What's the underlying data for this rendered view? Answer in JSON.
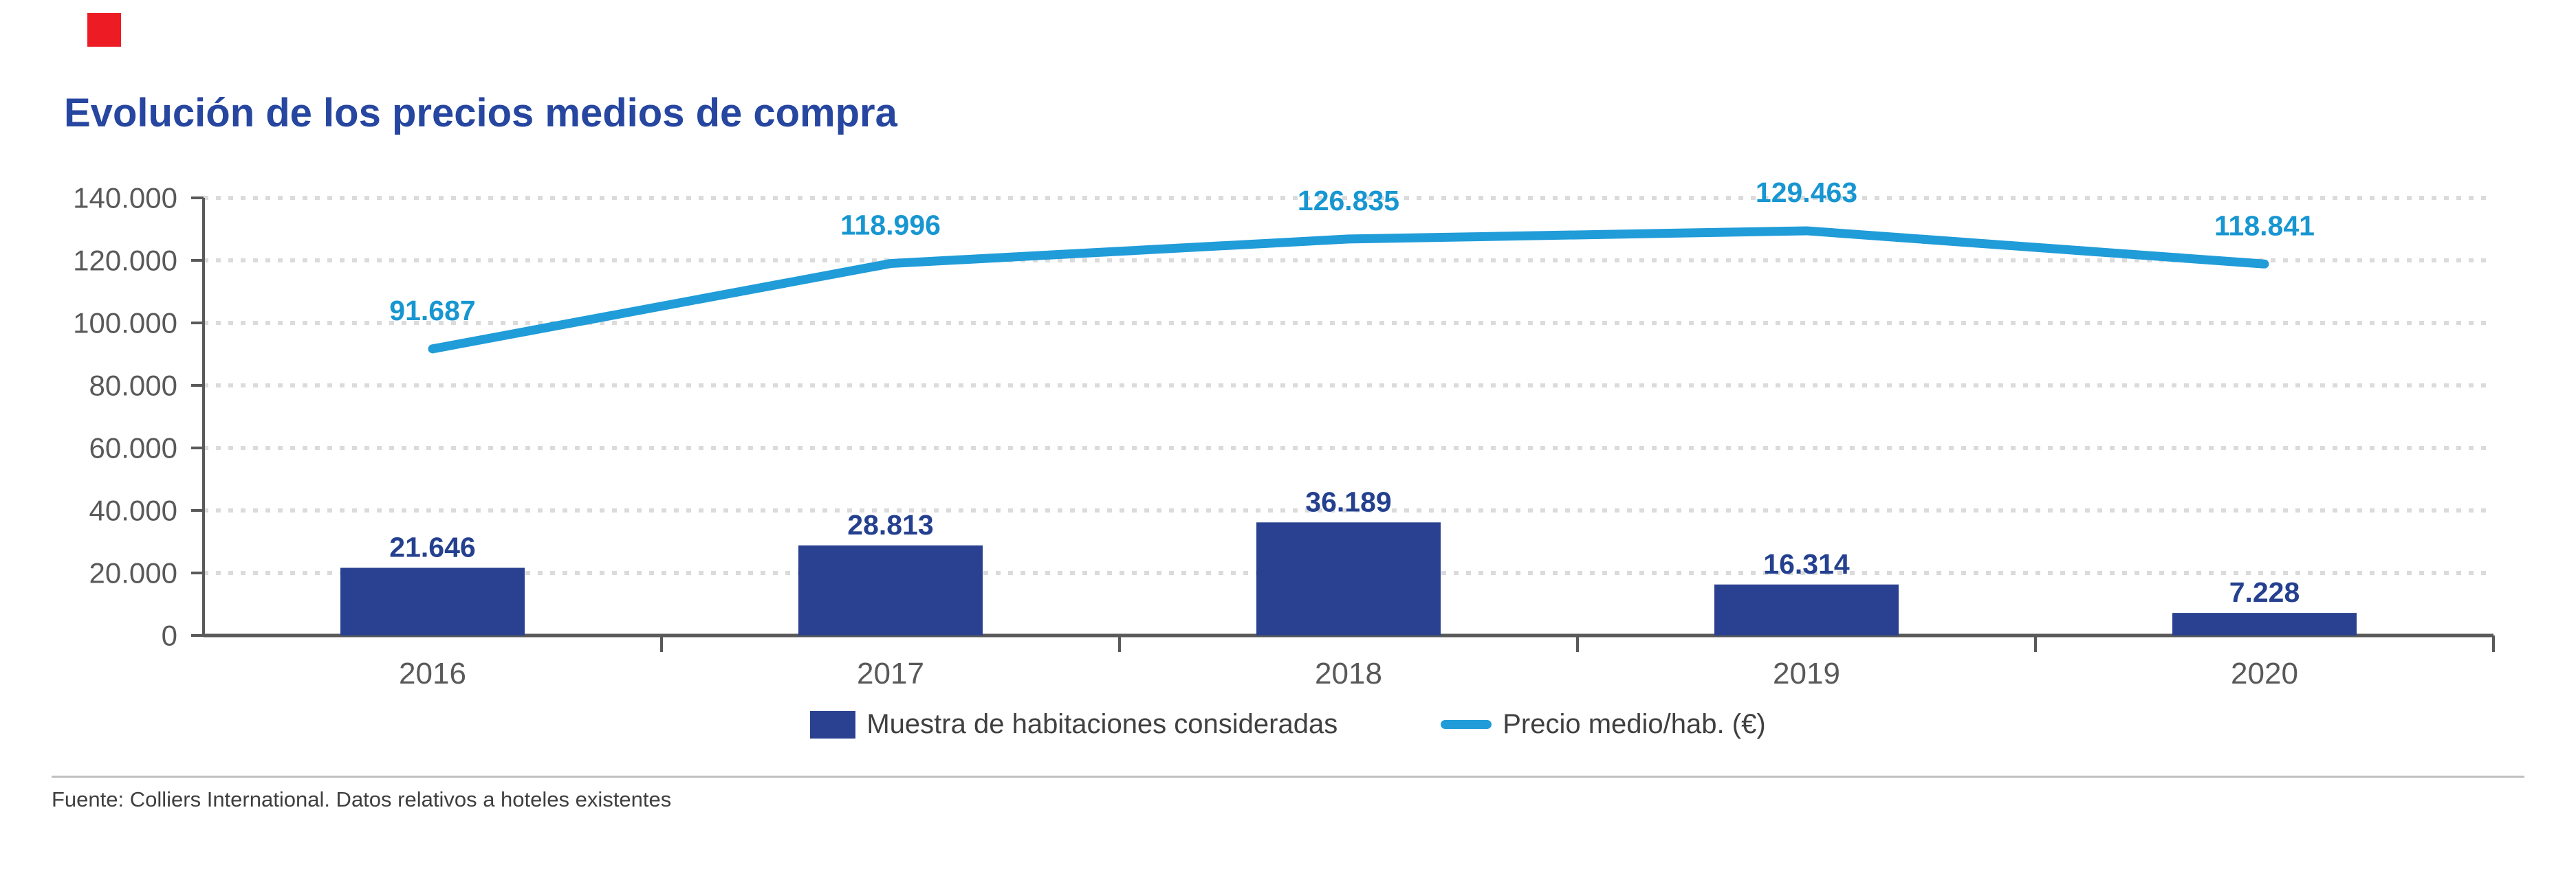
{
  "title": {
    "text": "Evolución de los precios medios de compra",
    "color": "#2646a0"
  },
  "red_marker_color": "#ed1c24",
  "legend": {
    "items": [
      {
        "label": "Muestra de habitaciones consideradas",
        "marker": "bar-square",
        "color": "#2a4191"
      },
      {
        "label": "Precio medio/hab. (€)",
        "marker": "line-dash",
        "color": "#209cd8"
      }
    ],
    "position": "bottom-center"
  },
  "footer": {
    "source_text": "Fuente: Colliers International. Datos relativos a hoteles existentes"
  },
  "colors": {
    "bar": "#2a4191",
    "bar_label": "#24408f",
    "line": "#209cd8",
    "line_label": "#1796d1",
    "axis": "#595959",
    "tick_label": "#595959",
    "gridline": "#dbdbdb"
  },
  "chart_data": {
    "type": "combo",
    "title": "Evolución de los precios medios de compra",
    "categories": [
      "2016",
      "2017",
      "2018",
      "2019",
      "2020"
    ],
    "series": [
      {
        "name": "Muestra de habitaciones consideradas",
        "type": "bar",
        "color": "#2a4191",
        "values": [
          21646,
          28813,
          36189,
          16314,
          7228
        ],
        "labels": [
          "21.646",
          "28.813",
          "36.189",
          "16.314",
          "7.228"
        ]
      },
      {
        "name": "Precio medio/hab. (€)",
        "type": "line",
        "color": "#209cd8",
        "values": [
          91687,
          118996,
          126835,
          129463,
          118841
        ],
        "labels": [
          "91.687",
          "118.996",
          "126.835",
          "129.463",
          "118.841"
        ]
      }
    ],
    "xlabel": "",
    "ylabel": "",
    "ylim": [
      0,
      140000
    ],
    "y_tick_step": 20000,
    "y_ticks": [
      {
        "value": 0,
        "label": "0"
      },
      {
        "value": 20000,
        "label": "20.000"
      },
      {
        "value": 40000,
        "label": "40.000"
      },
      {
        "value": 60000,
        "label": "60.000"
      },
      {
        "value": 80000,
        "label": "80.000"
      },
      {
        "value": 100000,
        "label": "100.000"
      },
      {
        "value": 120000,
        "label": "120.000"
      },
      {
        "value": 140000,
        "label": "140.000"
      }
    ],
    "grid": "horizontal-dotted",
    "legend_position": "bottom"
  }
}
